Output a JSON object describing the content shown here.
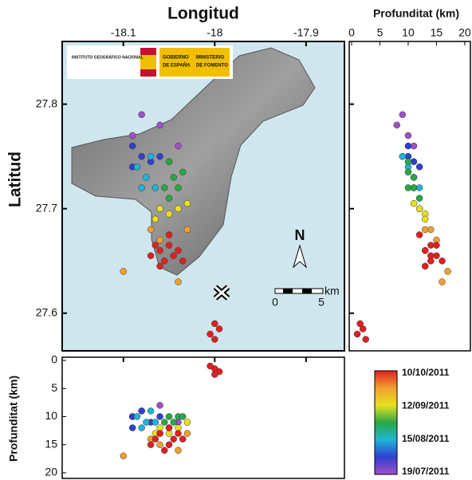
{
  "chart_data": {
    "type": "scatter",
    "xlabel": "Longitud",
    "ylabel": "Latitud",
    "depth_label_right": "Profunditat (km)",
    "depth_label_bottom": "Profunditat (km)",
    "xlim": [
      -18.167,
      -17.858
    ],
    "xticks": [
      -18.1,
      -18,
      -17.9
    ],
    "ylim": [
      27.564,
      27.86
    ],
    "yticks": [
      27.6,
      27.7,
      27.8
    ],
    "depthlim": [
      0,
      21
    ],
    "depthticks": [
      0,
      5,
      10,
      15,
      20
    ],
    "events": {
      "lon": [
        -18.08,
        -18.06,
        -18.09,
        -18.04,
        -18.09,
        -18.08,
        -18.07,
        -18.09,
        -18.06,
        -18.085,
        -18.075,
        -18.08,
        -18.07,
        -18.065,
        -18.05,
        -18.045,
        -18.04,
        -18.05,
        -18.035,
        -18.055,
        -18.06,
        -18.05,
        -18.04,
        -18.065,
        -18.03,
        -18.07,
        -18.06,
        -18.03,
        -18.1,
        -18.04,
        -18.065,
        -18.06,
        -18.05,
        -18.045,
        -18.055,
        -18.04,
        -18.07,
        -18.05,
        -18.035,
        -18.06,
        -18.0,
        -17.995,
        -18.005,
        -18.0
      ],
      "lat": [
        27.79,
        27.78,
        27.77,
        27.76,
        27.76,
        27.75,
        27.745,
        27.74,
        27.75,
        27.74,
        27.73,
        27.72,
        27.75,
        27.72,
        27.745,
        27.73,
        27.72,
        27.71,
        27.735,
        27.72,
        27.7,
        27.695,
        27.7,
        27.69,
        27.705,
        27.68,
        27.67,
        27.68,
        27.64,
        27.63,
        27.665,
        27.66,
        27.665,
        27.655,
        27.65,
        27.66,
        27.655,
        27.675,
        27.65,
        27.645,
        27.59,
        27.585,
        27.58,
        27.575
      ],
      "depth": [
        9,
        8,
        10,
        11,
        10,
        9,
        11,
        12,
        10,
        10,
        11,
        12,
        9,
        11,
        10,
        11,
        10,
        12,
        10,
        11,
        12,
        13,
        12,
        13,
        11,
        14,
        15,
        13,
        17,
        16,
        14,
        13,
        15,
        14,
        16,
        13,
        15,
        12,
        14,
        13,
        1.5,
        2,
        1,
        2.5
      ],
      "color": [
        "#a050c8",
        "#a050c8",
        "#a050c8",
        "#a050c8",
        "#3040d0",
        "#3040d0",
        "#3040d0",
        "#3040d0",
        "#3040d0",
        "#20b4d8",
        "#20b4d8",
        "#20b4d8",
        "#20b4d8",
        "#20b4d8",
        "#28a844",
        "#28a844",
        "#28a844",
        "#28a844",
        "#28a844",
        "#28a844",
        "#e8e020",
        "#e8e020",
        "#e8e020",
        "#e8e020",
        "#e8e020",
        "#f0a030",
        "#f0a030",
        "#f0a030",
        "#f0a030",
        "#f0a030",
        "#e02020",
        "#e02020",
        "#e02020",
        "#e02020",
        "#e02020",
        "#e02020",
        "#e02020",
        "#e02020",
        "#e02020",
        "#e02020",
        "#e02020",
        "#e02020",
        "#e02020",
        "#e02020"
      ]
    },
    "colorbar": {
      "ticks": [
        "10/10/2011",
        "12/09/2011",
        "15/08/2011",
        "19/07/2011"
      ],
      "colors": [
        "#e02020",
        "#f0a030",
        "#e8e020",
        "#28a844",
        "#20b4d8",
        "#3040d0",
        "#a050c8"
      ]
    },
    "logo": {
      "ign": "INSTITUTO GEOGRÁFICO NACIONAL",
      "gov1": "GOBIERNO",
      "gov2": "DE ESPAÑA",
      "min1": "MINISTERIO",
      "min2": "DE FOMENTO"
    },
    "north": "N",
    "scale": {
      "start": "0",
      "end": "5",
      "unit": "km"
    }
  }
}
